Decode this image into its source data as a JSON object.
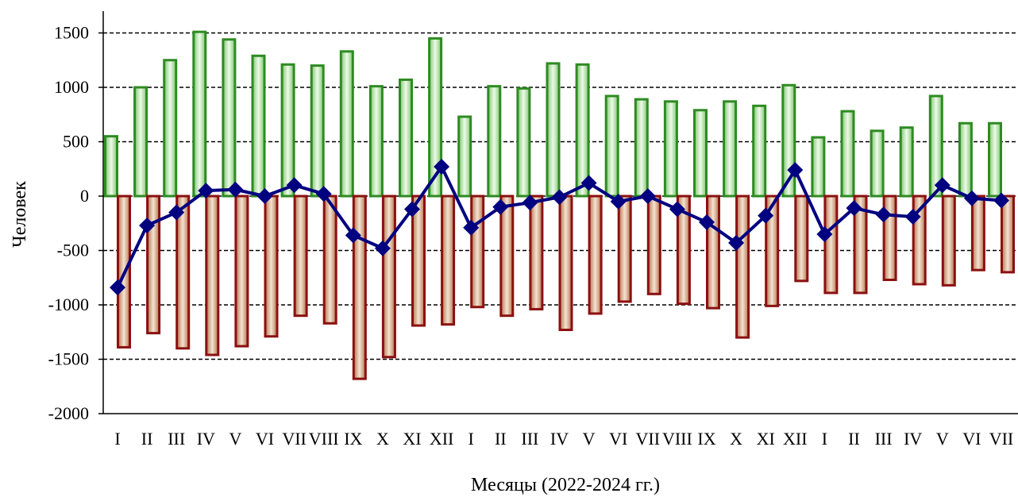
{
  "chart_data": {
    "type": "bar",
    "title": "",
    "xlabel": "Месяцы (2022-2024 гг.)",
    "ylabel": "Человек",
    "ylim": [
      -2000,
      1700
    ],
    "yticks": [
      1500,
      1000,
      500,
      0,
      -500,
      -1000,
      -1500,
      -2000
    ],
    "grid": true,
    "categories": [
      "I",
      "II",
      "III",
      "IV",
      "V",
      "VI",
      "VII",
      "VIII",
      "IX",
      "X",
      "XI",
      "XII",
      "I",
      "II",
      "III",
      "IV",
      "V",
      "VI",
      "VII",
      "VIII",
      "IX",
      "X",
      "XI",
      "XII",
      "I",
      "II",
      "III",
      "IV",
      "V",
      "VI",
      "VII"
    ],
    "series": [
      {
        "kind": "bar",
        "color": "#2e8b22",
        "fill": "#c9eec0",
        "values": [
          550,
          1000,
          1250,
          1510,
          1440,
          1290,
          1210,
          1200,
          1330,
          1010,
          1070,
          1450,
          730,
          1010,
          990,
          1220,
          1210,
          920,
          890,
          870,
          790,
          870,
          830,
          1020,
          540,
          780,
          600,
          630,
          920,
          670,
          670
        ]
      },
      {
        "kind": "bar",
        "color": "#8b1010",
        "fill": "#e8c7ad",
        "values": [
          -1390,
          -1260,
          -1400,
          -1460,
          -1380,
          -1290,
          -1100,
          -1170,
          -1680,
          -1480,
          -1190,
          -1180,
          -1020,
          -1100,
          -1040,
          -1230,
          -1080,
          -970,
          -900,
          -990,
          -1030,
          -1300,
          -1010,
          -780,
          -890,
          -890,
          -770,
          -810,
          -820,
          -680,
          -700
        ]
      },
      {
        "kind": "line",
        "color": "#000080",
        "values": [
          -840,
          -270,
          -150,
          50,
          60,
          0,
          100,
          20,
          -360,
          -480,
          -120,
          270,
          -290,
          -100,
          -60,
          -10,
          120,
          -50,
          0,
          -120,
          -240,
          -430,
          -180,
          240,
          -350,
          -110,
          -170,
          -190,
          100,
          -20,
          -40
        ]
      }
    ]
  }
}
